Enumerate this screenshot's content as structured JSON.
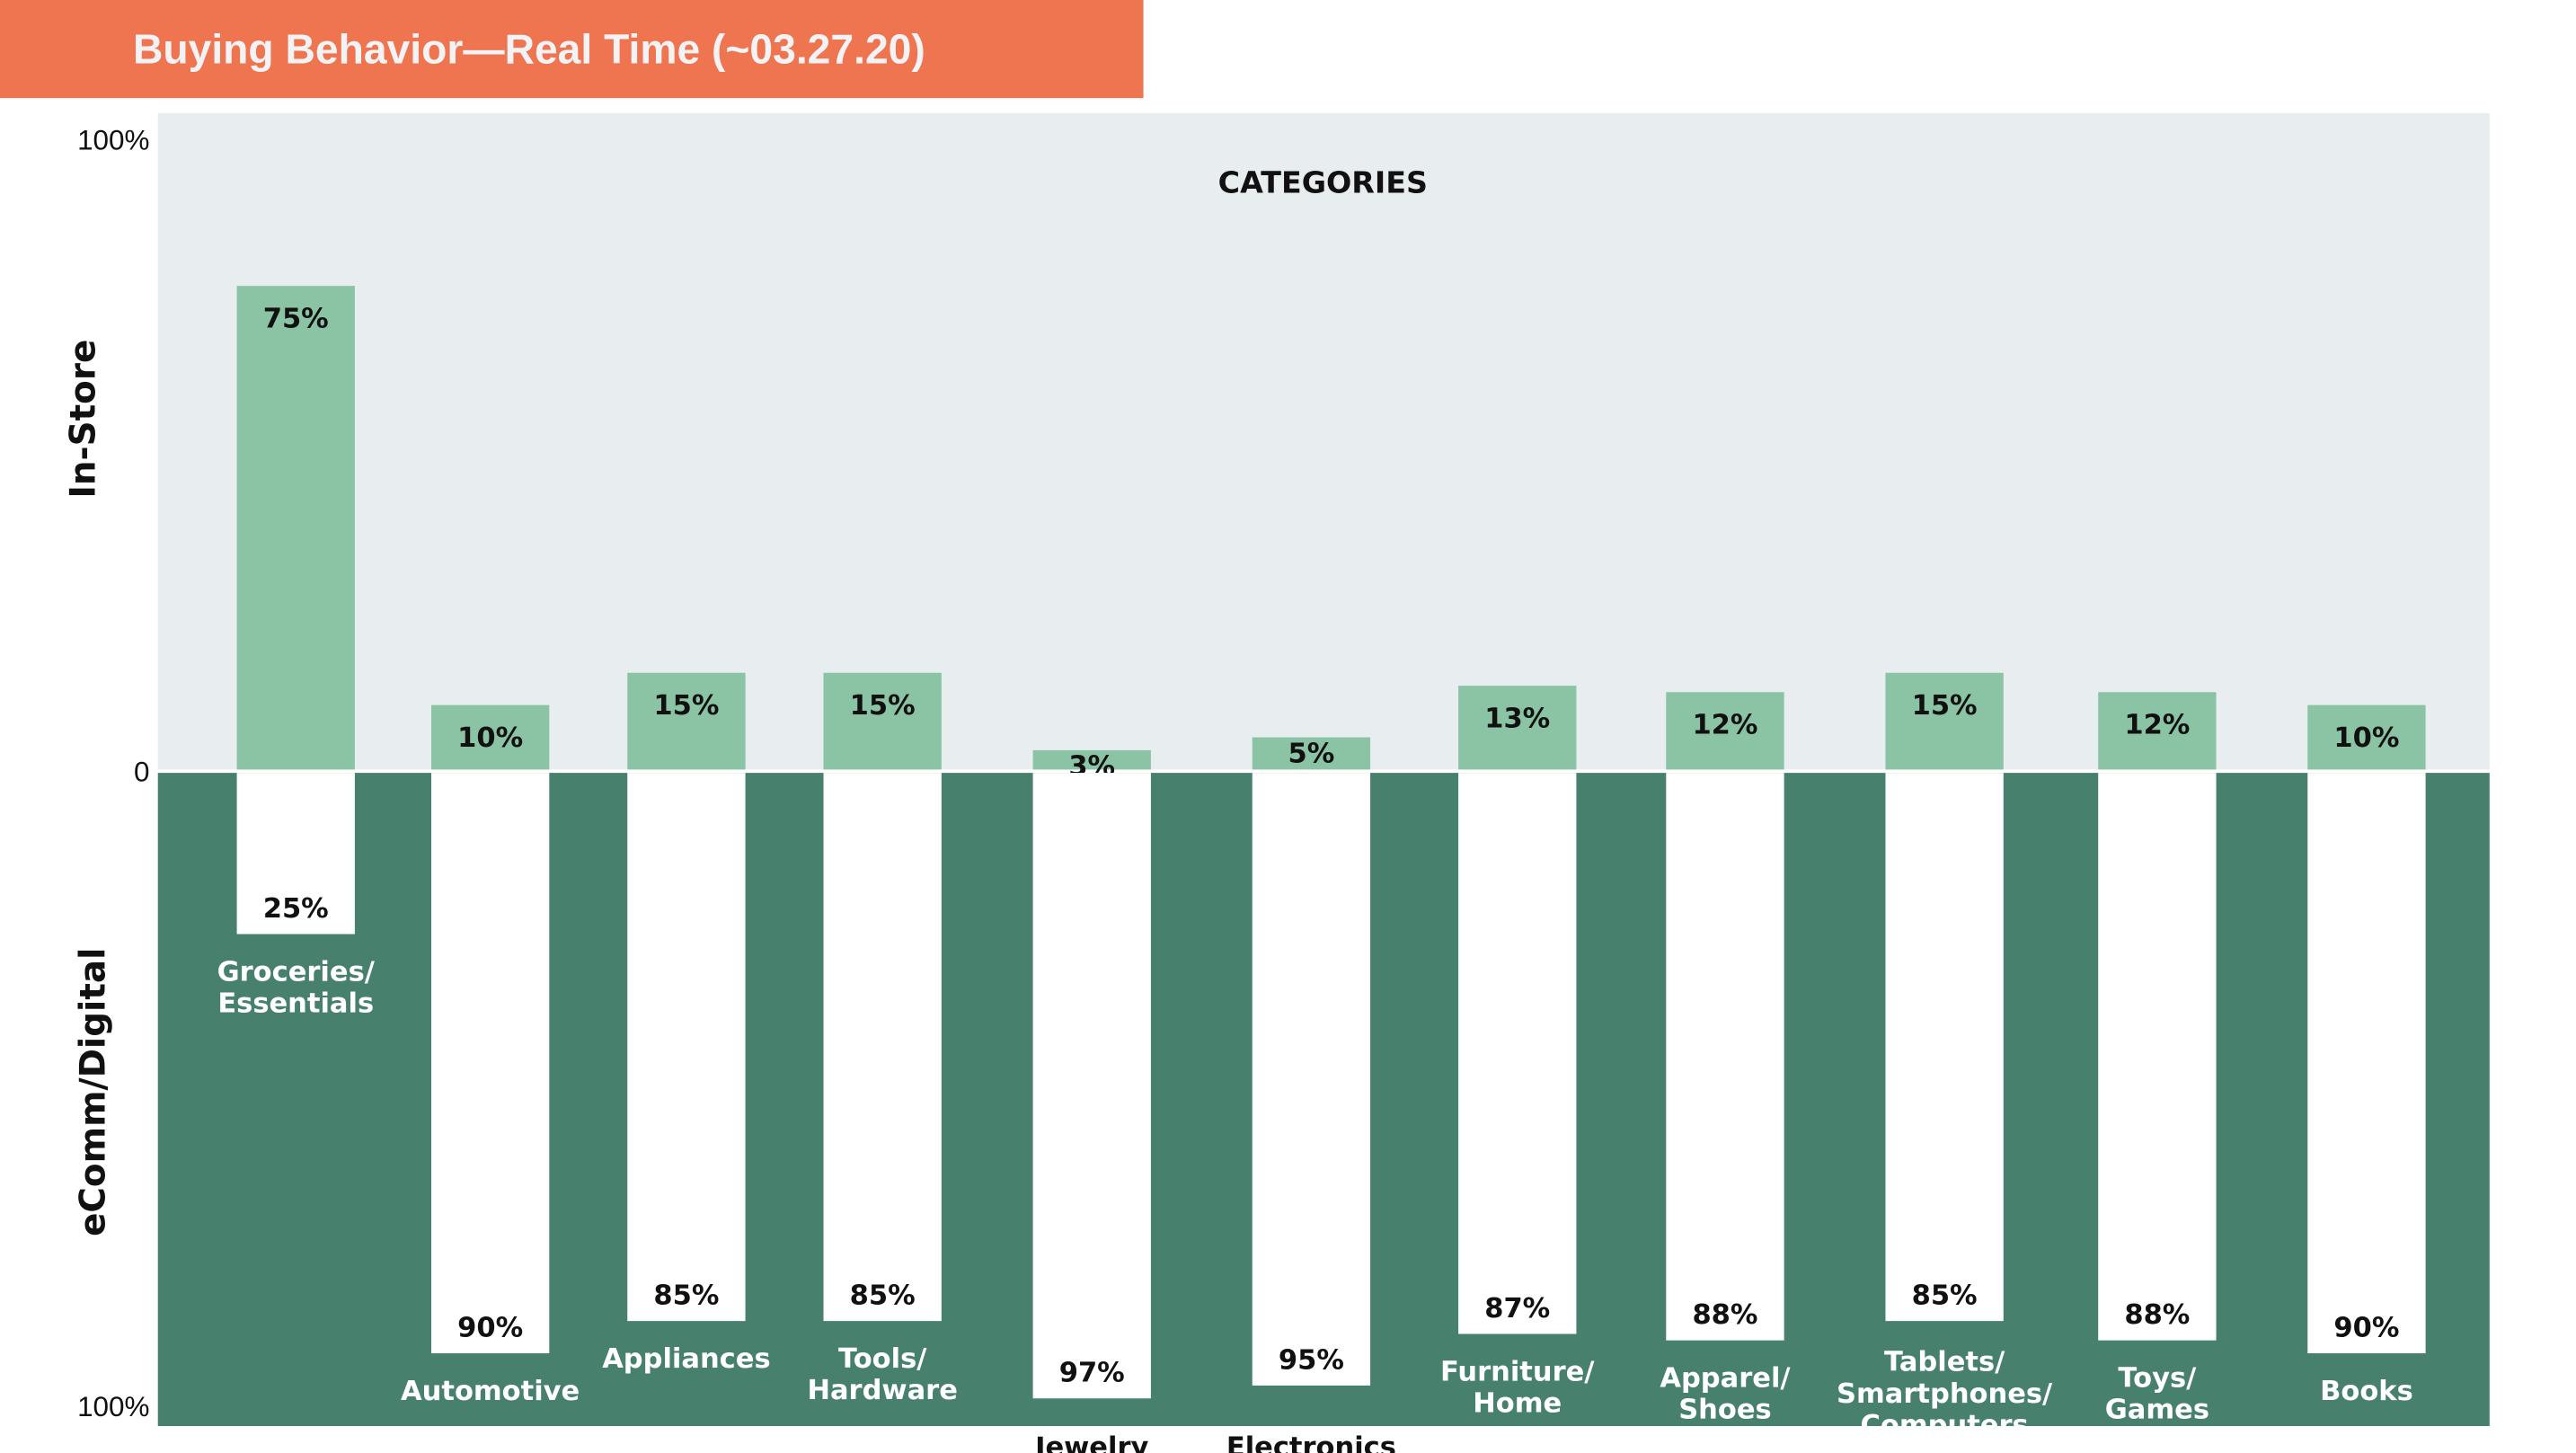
{
  "chart_data": {
    "type": "bar",
    "title": "Buying Behavior—Real Time (~03.27.20)",
    "subtitle": "CATEGORIES",
    "ylabel_top": "In-Store",
    "ylabel_bottom": "eComm/Digital",
    "ytick_labels": {
      "top": "100%",
      "zero": "0",
      "bottom": "100%"
    },
    "ylim": [
      0,
      100
    ],
    "categories": [
      [
        "Groceries/",
        "Essentials"
      ],
      [
        "Automotive"
      ],
      [
        "Appliances"
      ],
      [
        "Tools/",
        "Hardware"
      ],
      [
        "Jewelry"
      ],
      [
        "Electronics"
      ],
      [
        "Furniture/",
        "Home"
      ],
      [
        "Apparel/",
        "Shoes"
      ],
      [
        "Tablets/",
        "Smartphones/",
        "Computers"
      ],
      [
        "Toys/",
        "Games"
      ],
      [
        "Books"
      ]
    ],
    "series": [
      {
        "name": "In-Store",
        "values": [
          75,
          10,
          15,
          15,
          3,
          5,
          13,
          12,
          15,
          12,
          10
        ],
        "labels": [
          "75%",
          "10%",
          "15%",
          "15%",
          "3%",
          "5%",
          "13%",
          "12%",
          "15%",
          "12%",
          "10%"
        ]
      },
      {
        "name": "eComm/Digital",
        "values": [
          25,
          90,
          85,
          85,
          97,
          95,
          87,
          88,
          85,
          88,
          90
        ],
        "labels": [
          "25%",
          "90%",
          "85%",
          "85%",
          "97%",
          "95%",
          "87%",
          "88%",
          "85%",
          "88%",
          "90%"
        ]
      }
    ],
    "grid": false,
    "legend": "none"
  },
  "colors": {
    "title_bg": "#EE7550",
    "title_text": "#F3F3F6",
    "top_bg": "#E8EDF0",
    "instore": "#8BC3A5",
    "bottom_bg": "#47806D",
    "ecomm": "#FFFFFF"
  }
}
